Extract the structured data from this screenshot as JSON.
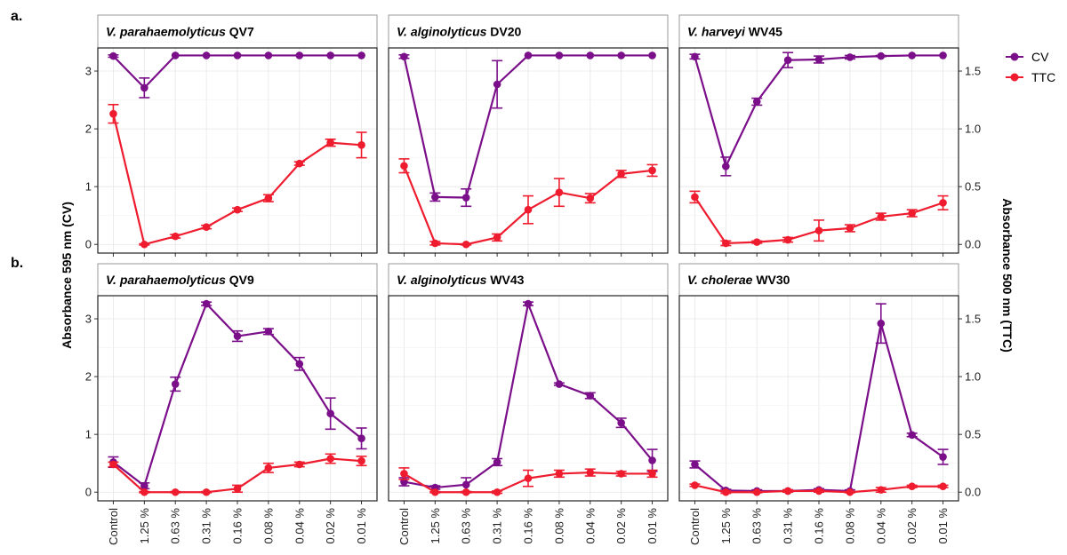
{
  "figure": {
    "row_labels": [
      "a.",
      "b."
    ],
    "y_left_label": "Absorbance 595 nm (CV)",
    "y_right_label": "Absorbance 500 nm (TTC)",
    "legend": [
      {
        "label": "CV",
        "color": "#7B0F8A"
      },
      {
        "label": "TTC",
        "color": "#EE1C2E"
      }
    ]
  },
  "chart_data": [
    {
      "type": "line",
      "species": "V. parahaemolyticus",
      "strain": "QV7",
      "categories": [
        "Control",
        "1.25 %",
        "0.63 %",
        "0.31 %",
        "0.16 %",
        "0.08 %",
        "0.04 %",
        "0.02 %",
        "0.01 %"
      ],
      "ylim_left": [
        -0.15,
        3.4
      ],
      "ylim_right": [
        -0.075,
        1.7
      ],
      "yticks_left": [
        "0",
        "1",
        "2",
        "3"
      ],
      "yticks_right": [
        "0.0",
        "0.5",
        "1.0",
        "1.5"
      ],
      "series": [
        {
          "name": "CV",
          "axis": "left",
          "values": [
            3.26,
            2.71,
            3.27,
            3.27,
            3.27,
            3.27,
            3.27,
            3.27,
            3.27
          ],
          "errors": [
            0.02,
            0.17,
            0,
            0,
            0,
            0,
            0,
            0,
            0
          ]
        },
        {
          "name": "TTC",
          "axis": "right",
          "values": [
            1.13,
            0.0,
            0.07,
            0.15,
            0.3,
            0.4,
            0.7,
            0.88,
            0.86
          ],
          "errors": [
            0.08,
            0.005,
            0.015,
            0.015,
            0.015,
            0.03,
            0.015,
            0.03,
            0.11
          ]
        }
      ]
    },
    {
      "type": "line",
      "species": "V. alginolyticus",
      "strain": "DV20",
      "categories": [
        "Control",
        "1.25 %",
        "0.63 %",
        "0.31 %",
        "0.16 %",
        "0.08 %",
        "0.04 %",
        "0.02 %",
        "0.01 %"
      ],
      "ylim_left": [
        -0.15,
        3.4
      ],
      "ylim_right": [
        -0.075,
        1.7
      ],
      "yticks_left": [
        "0",
        "1",
        "2",
        "3"
      ],
      "yticks_right": [
        "0.0",
        "0.5",
        "1.0",
        "1.5"
      ],
      "series": [
        {
          "name": "CV",
          "axis": "left",
          "values": [
            3.25,
            0.82,
            0.81,
            2.77,
            3.27,
            3.27,
            3.27,
            3.27,
            3.27
          ],
          "errors": [
            0.03,
            0.07,
            0.15,
            0.41,
            0,
            0,
            0,
            0,
            0
          ]
        },
        {
          "name": "TTC",
          "axis": "right",
          "values": [
            0.68,
            0.01,
            0.0,
            0.06,
            0.3,
            0.45,
            0.4,
            0.61,
            0.64
          ],
          "errors": [
            0.06,
            0.015,
            0.005,
            0.03,
            0.12,
            0.12,
            0.04,
            0.03,
            0.05
          ]
        }
      ]
    },
    {
      "type": "line",
      "species": "V. harveyi",
      "strain": "WV45",
      "categories": [
        "Control",
        "1.25 %",
        "0.63 %",
        "0.31 %",
        "0.16 %",
        "0.08 %",
        "0.04 %",
        "0.02 %",
        "0.01 %"
      ],
      "ylim_left": [
        -0.15,
        3.4
      ],
      "ylim_right": [
        -0.075,
        1.7
      ],
      "yticks_left": [
        "0",
        "1",
        "2",
        "3"
      ],
      "yticks_right": [
        "0.0",
        "0.5",
        "1.0",
        "1.5"
      ],
      "series": [
        {
          "name": "CV",
          "axis": "left",
          "values": [
            3.25,
            1.35,
            2.47,
            3.19,
            3.2,
            3.24,
            3.26,
            3.27,
            3.27
          ],
          "errors": [
            0.04,
            0.16,
            0.06,
            0.13,
            0.06,
            0.03,
            0.01,
            0,
            0
          ]
        },
        {
          "name": "TTC",
          "axis": "right",
          "values": [
            0.41,
            0.01,
            0.02,
            0.04,
            0.12,
            0.14,
            0.24,
            0.27,
            0.36
          ],
          "errors": [
            0.05,
            0.02,
            0.01,
            0.02,
            0.09,
            0.03,
            0.03,
            0.03,
            0.06
          ]
        }
      ]
    },
    {
      "type": "line",
      "species": "V. parahaemolyticus",
      "strain": "QV9",
      "categories": [
        "Control",
        "1.25 %",
        "0.63 %",
        "0.31 %",
        "0.16 %",
        "0.08 %",
        "0.04 %",
        "0.02 %",
        "0.01 %"
      ],
      "ylim_left": [
        -0.15,
        3.4
      ],
      "ylim_right": [
        -0.075,
        1.7
      ],
      "yticks_left": [
        "0",
        "1",
        "2",
        "3"
      ],
      "yticks_right": [
        "0.0",
        "0.5",
        "1.0",
        "1.5"
      ],
      "series": [
        {
          "name": "CV",
          "axis": "left",
          "values": [
            0.52,
            0.11,
            1.87,
            3.26,
            2.7,
            2.78,
            2.22,
            1.36,
            0.93
          ],
          "errors": [
            0.09,
            0.05,
            0.12,
            0.03,
            0.09,
            0.05,
            0.11,
            0.27,
            0.18
          ]
        },
        {
          "name": "TTC",
          "axis": "right",
          "values": [
            0.24,
            0.0,
            0.0,
            0.0,
            0.03,
            0.21,
            0.24,
            0.29,
            0.27
          ],
          "errors": [
            0.02,
            0.005,
            0.005,
            0.005,
            0.03,
            0.04,
            0.02,
            0.04,
            0.04
          ]
        }
      ]
    },
    {
      "type": "line",
      "species": "V. alginolyticus",
      "strain": "WV43",
      "categories": [
        "Control",
        "1.25 %",
        "0.63 %",
        "0.31 %",
        "0.16 %",
        "0.08 %",
        "0.04 %",
        "0.02 %",
        "0.01 %"
      ],
      "ylim_left": [
        -0.15,
        3.4
      ],
      "ylim_right": [
        -0.075,
        1.7
      ],
      "yticks_left": [
        "0",
        "1",
        "2",
        "3"
      ],
      "yticks_right": [
        "0.0",
        "0.5",
        "1.0",
        "1.5"
      ],
      "series": [
        {
          "name": "CV",
          "axis": "left",
          "values": [
            0.18,
            0.08,
            0.13,
            0.52,
            3.26,
            1.87,
            1.67,
            1.2,
            0.55
          ],
          "errors": [
            0.07,
            0.03,
            0.12,
            0.06,
            0.03,
            0.02,
            0.05,
            0.08,
            0.19
          ]
        },
        {
          "name": "TTC",
          "axis": "right",
          "values": [
            0.16,
            0.0,
            0.0,
            0.0,
            0.12,
            0.16,
            0.17,
            0.16,
            0.16
          ],
          "errors": [
            0.05,
            0.005,
            0.005,
            0.01,
            0.07,
            0.03,
            0.03,
            0.02,
            0.03
          ]
        }
      ]
    },
    {
      "type": "line",
      "species": "V. cholerae",
      "strain": "WV30",
      "categories": [
        "Control",
        "1.25 %",
        "0.63 %",
        "0.31 %",
        "0.16 %",
        "0.08 %",
        "0.04 %",
        "0.02 %",
        "0.01 %"
      ],
      "ylim_left": [
        -0.15,
        3.4
      ],
      "ylim_right": [
        -0.075,
        1.7
      ],
      "yticks_left": [
        "0",
        "1",
        "2",
        "3"
      ],
      "yticks_right": [
        "0.0",
        "0.5",
        "1.0",
        "1.5"
      ],
      "series": [
        {
          "name": "CV",
          "axis": "left",
          "values": [
            0.48,
            0.03,
            0.02,
            0.02,
            0.04,
            0.02,
            2.92,
            0.99,
            0.61
          ],
          "errors": [
            0.06,
            0.02,
            0.02,
            0.02,
            0.02,
            0.02,
            0.34,
            0.03,
            0.13
          ]
        },
        {
          "name": "TTC",
          "axis": "right",
          "values": [
            0.06,
            0.0,
            0.0,
            0.01,
            0.01,
            0.0,
            0.02,
            0.05,
            0.05
          ],
          "errors": [
            0.01,
            0.01,
            0.005,
            0.01,
            0.01,
            0.005,
            0.02,
            0.01,
            0.01
          ]
        }
      ]
    }
  ]
}
